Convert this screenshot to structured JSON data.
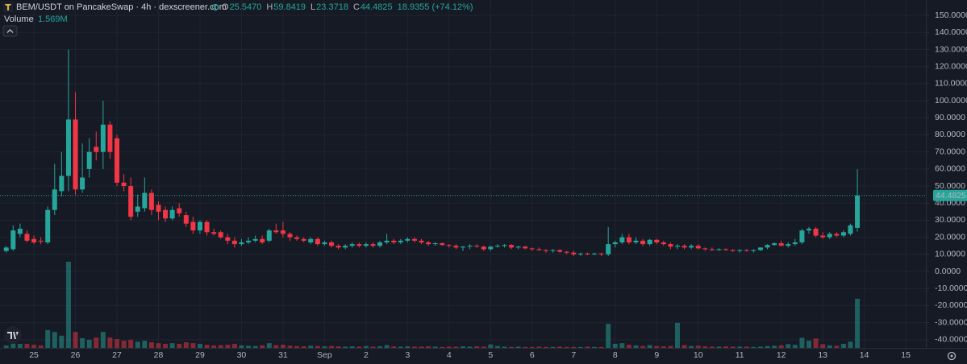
{
  "header": {
    "title": "BEM/USDT on PancakeSwap · 4h · dexscreener.com",
    "ohlc": [
      {
        "key": "O",
        "value": "25.5470"
      },
      {
        "key": "H",
        "value": "59.8419"
      },
      {
        "key": "L",
        "value": "23.3718"
      },
      {
        "key": "C",
        "value": "44.4825"
      }
    ],
    "change": "18.9355 (+74.12%)"
  },
  "chart_data": {
    "type": "candlestick",
    "up_color": "#26a69a",
    "down_color": "#f23645",
    "open": [
      12,
      13,
      22,
      22,
      19,
      18,
      17,
      36,
      47,
      56,
      89,
      48,
      60,
      73,
      70,
      86,
      78,
      52,
      50,
      35,
      37,
      46,
      39,
      36,
      31,
      37,
      33,
      29,
      24,
      29,
      23,
      23,
      20,
      18,
      16,
      17,
      18,
      19,
      18,
      24,
      24,
      22,
      20,
      19,
      17,
      19,
      16,
      17,
      15,
      14,
      15,
      16,
      15,
      16,
      15,
      17,
      18,
      17,
      18,
      19,
      18,
      17,
      16,
      16.5,
      15.5,
      15,
      14,
      14.5,
      15,
      14.5,
      13,
      14.5,
      15,
      15.5,
      14,
      14.5,
      13.5,
      13,
      12.5,
      12,
      12.5,
      11.5,
      11,
      10,
      10.5,
      10,
      10.5,
      10,
      16,
      17,
      20,
      17,
      18,
      16,
      18.5,
      17,
      16,
      14.5,
      15,
      14,
      15,
      13.5,
      13,
      12.5,
      13,
      12.5,
      12,
      12.5,
      12,
      12.5,
      14,
      15.5,
      16.5,
      15,
      16,
      17,
      24,
      25,
      21,
      20,
      22,
      21,
      22,
      25.547
    ],
    "high": [
      15,
      27,
      28,
      24,
      21,
      20,
      38,
      63,
      70,
      130,
      105,
      75,
      78,
      82,
      100,
      88,
      80,
      57,
      55,
      45,
      55,
      48,
      41,
      38,
      38,
      40,
      35,
      32,
      30,
      30,
      25,
      24,
      22,
      20,
      19,
      20,
      21,
      21,
      25,
      28,
      29,
      23,
      21,
      20,
      20,
      20,
      18,
      18,
      16,
      16,
      17,
      17,
      17,
      17,
      18,
      22,
      19,
      19,
      20,
      20,
      19,
      18,
      17,
      17,
      16,
      16,
      15,
      16,
      16,
      15,
      15,
      16,
      16,
      16,
      15,
      15,
      14,
      14,
      13,
      13,
      13,
      12,
      12,
      11,
      11,
      11,
      11,
      26,
      18,
      22,
      22,
      20,
      19,
      19,
      19,
      18,
      17,
      16,
      16,
      16,
      16,
      14,
      14,
      13.5,
      13.5,
      13,
      13,
      13,
      13,
      14,
      16,
      17,
      18,
      17,
      19,
      25,
      26,
      26,
      23,
      23,
      23,
      24,
      28,
      59.8419
    ],
    "low": [
      11,
      12,
      20,
      17,
      16,
      16,
      16,
      33,
      44,
      47,
      45,
      46,
      55,
      65,
      60,
      66,
      50,
      47,
      30,
      32,
      35,
      33,
      30,
      29,
      30,
      32,
      26,
      22,
      22,
      21,
      21,
      19,
      16,
      14,
      15,
      16,
      17,
      16,
      17,
      22,
      20,
      18,
      18,
      17,
      16,
      15,
      15,
      14,
      13,
      13,
      14,
      14,
      14,
      14,
      14,
      16,
      16,
      16,
      17,
      17,
      16,
      15,
      15,
      15,
      14,
      13,
      12,
      13,
      14,
      12,
      12,
      14,
      14,
      13,
      13,
      13,
      12,
      12,
      11,
      11,
      11,
      10,
      9,
      9,
      9.5,
      9.5,
      9,
      9,
      14,
      16,
      16,
      16,
      15,
      15,
      16,
      15,
      13,
      13,
      13,
      13,
      13,
      12,
      12,
      12,
      12,
      11.5,
      11,
      11.5,
      11,
      12,
      13,
      15,
      15,
      14,
      15,
      16,
      22,
      20,
      19,
      19,
      20,
      20,
      21,
      23.3718
    ],
    "close": [
      14,
      24,
      25,
      18,
      17,
      17.5,
      36,
      48,
      56,
      89,
      48,
      55,
      70,
      70,
      86,
      70,
      52,
      50,
      32,
      38,
      46,
      36,
      35,
      31,
      36,
      34,
      28,
      24,
      29,
      23,
      22,
      20,
      18,
      16,
      17,
      18,
      19,
      17,
      24,
      23,
      22,
      20,
      19,
      18,
      19,
      16,
      17,
      15,
      14,
      15,
      16,
      15,
      16,
      15,
      17,
      18,
      17,
      18,
      19,
      18,
      17,
      16,
      16.5,
      15.5,
      15,
      14,
      14.5,
      15,
      14.5,
      13,
      14.5,
      15,
      15.5,
      14,
      14.5,
      13.5,
      13,
      12.5,
      12,
      12.5,
      11.5,
      11,
      10,
      10.5,
      10,
      10.5,
      10,
      16,
      17,
      20,
      17,
      18,
      16,
      18.5,
      17,
      16,
      14.5,
      15,
      14,
      15,
      13.5,
      13,
      12.5,
      13,
      12.5,
      12,
      12.5,
      12,
      12.5,
      14,
      15.5,
      16.5,
      15,
      16,
      17,
      24,
      25,
      21,
      20,
      22,
      21,
      23,
      27,
      44.4825
    ],
    "volume": [
      80000,
      150000,
      130000,
      130000,
      100000,
      80000,
      570000,
      510000,
      390000,
      2750000,
      510000,
      310000,
      260000,
      330000,
      510000,
      330000,
      280000,
      230000,
      260000,
      200000,
      230000,
      180000,
      150000,
      130000,
      150000,
      130000,
      180000,
      150000,
      130000,
      100000,
      80000,
      90000,
      100000,
      130000,
      80000,
      70000,
      60000,
      80000,
      150000,
      90000,
      100000,
      70000,
      60000,
      50000,
      70000,
      60000,
      50000,
      60000,
      50000,
      40000,
      50000,
      40000,
      60000,
      40000,
      50000,
      90000,
      50000,
      40000,
      50000,
      40000,
      40000,
      50000,
      40000,
      30000,
      40000,
      40000,
      50000,
      40000,
      50000,
      40000,
      110000,
      60000,
      40000,
      30000,
      40000,
      30000,
      30000,
      40000,
      30000,
      30000,
      40000,
      30000,
      30000,
      30000,
      40000,
      30000,
      30000,
      770000,
      130000,
      150000,
      100000,
      80000,
      60000,
      90000,
      60000,
      50000,
      60000,
      800000,
      90000,
      60000,
      70000,
      50000,
      40000,
      40000,
      50000,
      40000,
      40000,
      40000,
      30000,
      40000,
      60000,
      70000,
      80000,
      120000,
      100000,
      320000,
      230000,
      300000,
      120000,
      80000,
      70000,
      130000,
      200000,
      1569000
    ],
    "volume_title": "Volume",
    "volume_label": "1.569M",
    "last_price": {
      "value": 44.4825,
      "label": "44.4825"
    },
    "xlim": [
      -0.9,
      132.9
    ],
    "xticks": [
      {
        "value": 4,
        "label": "25"
      },
      {
        "value": 10,
        "label": "26"
      },
      {
        "value": 16,
        "label": "27"
      },
      {
        "value": 22,
        "label": "28"
      },
      {
        "value": 28,
        "label": "29"
      },
      {
        "value": 34,
        "label": "30"
      },
      {
        "value": 40,
        "label": "31"
      },
      {
        "value": 46,
        "label": "Sep"
      },
      {
        "value": 52,
        "label": "2"
      },
      {
        "value": 58,
        "label": "3"
      },
      {
        "value": 64,
        "label": "4"
      },
      {
        "value": 70,
        "label": "5"
      },
      {
        "value": 76,
        "label": "6"
      },
      {
        "value": 82,
        "label": "7"
      },
      {
        "value": 88,
        "label": "8"
      },
      {
        "value": 94,
        "label": "9"
      },
      {
        "value": 100,
        "label": "10"
      },
      {
        "value": 106,
        "label": "11"
      },
      {
        "value": 112,
        "label": "12"
      },
      {
        "value": 118,
        "label": "13"
      },
      {
        "value": 124,
        "label": "14"
      },
      {
        "value": 130,
        "label": "15"
      }
    ],
    "ylim": [
      -44.8,
      159
    ],
    "yticks": [
      {
        "value": 150,
        "label": "150.0000"
      },
      {
        "value": 140,
        "label": "140.0000"
      },
      {
        "value": 130,
        "label": "130.0000"
      },
      {
        "value": 120,
        "label": "120.0000"
      },
      {
        "value": 110,
        "label": "110.0000"
      },
      {
        "value": 100,
        "label": "100.0000"
      },
      {
        "value": 90,
        "label": "90.0000"
      },
      {
        "value": 80,
        "label": "80.0000"
      },
      {
        "value": 70,
        "label": "70.0000"
      },
      {
        "value": 60,
        "label": "60.0000"
      },
      {
        "value": 50,
        "label": "50.0000"
      },
      {
        "value": 40,
        "label": "40.0000"
      },
      {
        "value": 30,
        "label": "30.0000"
      },
      {
        "value": 20,
        "label": "20.0000"
      },
      {
        "value": 10,
        "label": "10.0000"
      },
      {
        "value": 0,
        "label": "0.0000"
      },
      {
        "value": -10,
        "label": "-10.0000"
      },
      {
        "value": -20,
        "label": "-20.0000"
      },
      {
        "value": -30,
        "label": "-30.0000"
      },
      {
        "value": -40,
        "label": "-40.0000"
      }
    ],
    "grid": true
  }
}
